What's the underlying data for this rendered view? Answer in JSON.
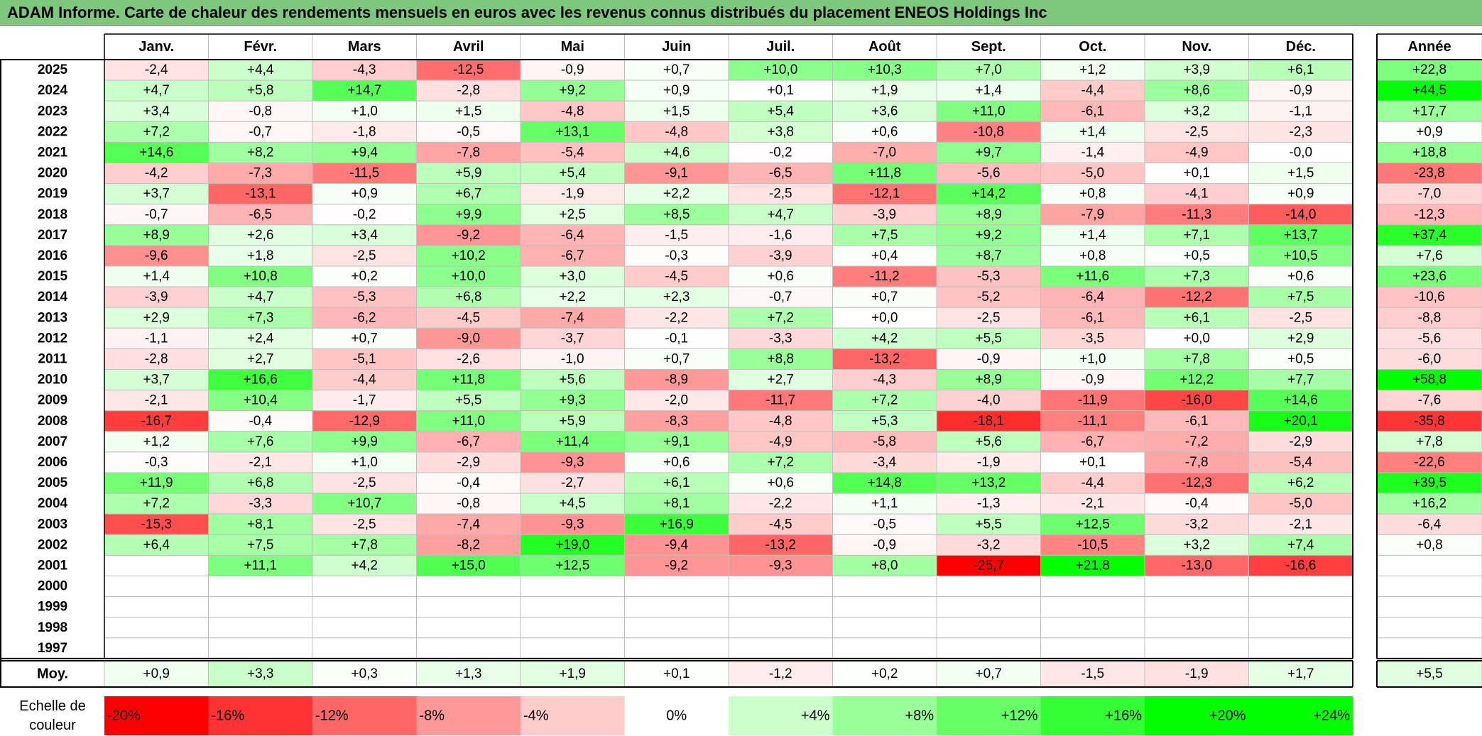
{
  "title": "ADAM Informe. Carte de chaleur des rendements mensuels en euros avec les revenus connus distribués du placement ENEOS Holdings Inc",
  "chart_data": {
    "type": "heatmap",
    "title": "ADAM Informe. Carte de chaleur des rendements mensuels en euros avec les revenus connus distribués du placement ENEOS Holdings Inc",
    "columns": [
      "Janv.",
      "Févr.",
      "Mars",
      "Avril",
      "Mai",
      "Juin",
      "Juil.",
      "Août",
      "Sept.",
      "Oct.",
      "Nov.",
      "Déc."
    ],
    "year_header": "Année",
    "rows": [
      {
        "year": "2025",
        "values": [
          "-2,4",
          "+4,4",
          "-4,3",
          "-12,5",
          "-0,9",
          "+0,7",
          "+10,0",
          "+10,3",
          "+7,0",
          "+1,2",
          "+3,9",
          "+6,1"
        ],
        "annual": "+22,8"
      },
      {
        "year": "2024",
        "values": [
          "+4,7",
          "+5,8",
          "+14,7",
          "-2,8",
          "+9,2",
          "+0,9",
          "+0,1",
          "+1,9",
          "+1,4",
          "-4,4",
          "+8,6",
          "-0,9"
        ],
        "annual": "+44,5"
      },
      {
        "year": "2023",
        "values": [
          "+3,4",
          "-0,8",
          "+1,0",
          "+1,5",
          "-4,8",
          "+1,5",
          "+5,4",
          "+3,6",
          "+11,0",
          "-6,1",
          "+3,2",
          "-1,1"
        ],
        "annual": "+17,7"
      },
      {
        "year": "2022",
        "values": [
          "+7,2",
          "-0,7",
          "-1,8",
          "-0,5",
          "+13,1",
          "-4,8",
          "+3,8",
          "+0,6",
          "-10,8",
          "+1,4",
          "-2,5",
          "-2,3"
        ],
        "annual": "+0,9"
      },
      {
        "year": "2021",
        "values": [
          "+14,6",
          "+8,2",
          "+9,4",
          "-7,8",
          "-5,4",
          "+4,6",
          "-0,2",
          "-7,0",
          "+9,7",
          "-1,4",
          "-4,9",
          "-0,0"
        ],
        "annual": "+18,8"
      },
      {
        "year": "2020",
        "values": [
          "-4,2",
          "-7,3",
          "-11,5",
          "+5,9",
          "+5,4",
          "-9,1",
          "-6,5",
          "+11,8",
          "-5,6",
          "-5,0",
          "+0,1",
          "+1,5"
        ],
        "annual": "-23,8"
      },
      {
        "year": "2019",
        "values": [
          "+3,7",
          "-13,1",
          "+0,9",
          "+6,7",
          "-1,9",
          "+2,2",
          "-2,5",
          "-12,1",
          "+14,2",
          "+0,8",
          "-4,1",
          "+0,9"
        ],
        "annual": "-7,0"
      },
      {
        "year": "2018",
        "values": [
          "-0,7",
          "-6,5",
          "-0,2",
          "+9,9",
          "+2,5",
          "+8,5",
          "+4,7",
          "-3,9",
          "+8,9",
          "-7,9",
          "-11,3",
          "-14,0"
        ],
        "annual": "-12,3"
      },
      {
        "year": "2017",
        "values": [
          "+8,9",
          "+2,6",
          "+3,4",
          "-9,2",
          "-6,4",
          "-1,5",
          "-1,6",
          "+7,5",
          "+9,2",
          "+1,4",
          "+7,1",
          "+13,7"
        ],
        "annual": "+37,4"
      },
      {
        "year": "2016",
        "values": [
          "-9,6",
          "+1,8",
          "-2,5",
          "+10,2",
          "-6,7",
          "-0,3",
          "-3,9",
          "+0,4",
          "+8,7",
          "+0,8",
          "+0,5",
          "+10,5"
        ],
        "annual": "+7,6"
      },
      {
        "year": "2015",
        "values": [
          "+1,4",
          "+10,8",
          "+0,2",
          "+10,0",
          "+3,0",
          "-4,5",
          "+0,6",
          "-11,2",
          "-5,3",
          "+11,6",
          "+7,3",
          "+0,6"
        ],
        "annual": "+23,6"
      },
      {
        "year": "2014",
        "values": [
          "-3,9",
          "+4,7",
          "-5,3",
          "+6,8",
          "+2,2",
          "+2,3",
          "-0,7",
          "+0,7",
          "-5,2",
          "-6,4",
          "-12,2",
          "+7,5"
        ],
        "annual": "-10,6"
      },
      {
        "year": "2013",
        "values": [
          "+2,9",
          "+7,3",
          "-6,2",
          "-4,5",
          "-7,4",
          "-2,2",
          "+7,2",
          "+0,0",
          "-2,5",
          "-6,1",
          "+6,1",
          "-2,5"
        ],
        "annual": "-8,8"
      },
      {
        "year": "2012",
        "values": [
          "-1,1",
          "+2,4",
          "+0,7",
          "-9,0",
          "-3,7",
          "-0,1",
          "-3,3",
          "+4,2",
          "+5,5",
          "-3,5",
          "+0,0",
          "+2,9"
        ],
        "annual": "-5,6"
      },
      {
        "year": "2011",
        "values": [
          "-2,8",
          "+2,7",
          "-5,1",
          "-2,6",
          "-1,0",
          "+0,7",
          "+8,8",
          "-13,2",
          "-0,9",
          "+1,0",
          "+7,8",
          "+0,5"
        ],
        "annual": "-6,0"
      },
      {
        "year": "2010",
        "values": [
          "+3,7",
          "+16,6",
          "-4,4",
          "+11,8",
          "+5,6",
          "-8,9",
          "+2,7",
          "-4,3",
          "+8,9",
          "-0,9",
          "+12,2",
          "+7,7"
        ],
        "annual": "+58,8"
      },
      {
        "year": "2009",
        "values": [
          "-2,1",
          "+10,4",
          "-1,7",
          "+5,5",
          "+9,3",
          "-2,0",
          "-11,7",
          "+7,2",
          "-4,0",
          "-11,9",
          "-16,0",
          "+14,6"
        ],
        "annual": "-7,6"
      },
      {
        "year": "2008",
        "values": [
          "-16,7",
          "-0,4",
          "-12,9",
          "+11,0",
          "+5,9",
          "-8,3",
          "-4,8",
          "+5,3",
          "-18,1",
          "-11,1",
          "-6,1",
          "+20,1"
        ],
        "annual": "-35,8"
      },
      {
        "year": "2007",
        "values": [
          "+1,2",
          "+7,6",
          "+9,9",
          "-6,7",
          "+11,4",
          "+9,1",
          "-4,9",
          "-5,8",
          "+5,6",
          "-6,7",
          "-7,2",
          "-2,9"
        ],
        "annual": "+7,8"
      },
      {
        "year": "2006",
        "values": [
          "-0,3",
          "-2,1",
          "+1,0",
          "-2,9",
          "-9,3",
          "+0,6",
          "+7,2",
          "-3,4",
          "-1,9",
          "+0,1",
          "-7,8",
          "-5,4"
        ],
        "annual": "-22,6"
      },
      {
        "year": "2005",
        "values": [
          "+11,9",
          "+6,8",
          "-2,5",
          "-0,4",
          "-2,7",
          "+6,1",
          "+0,6",
          "+14,8",
          "+13,2",
          "-4,4",
          "-12,3",
          "+6,2"
        ],
        "annual": "+39,5"
      },
      {
        "year": "2004",
        "values": [
          "+7,2",
          "-3,3",
          "+10,7",
          "-0,8",
          "+4,5",
          "+8,1",
          "-2,2",
          "+1,1",
          "-1,3",
          "-2,1",
          "-0,4",
          "-5,0"
        ],
        "annual": "+16,2"
      },
      {
        "year": "2003",
        "values": [
          "-15,3",
          "+8,1",
          "-2,5",
          "-7,4",
          "-9,3",
          "+16,9",
          "-4,5",
          "-0,5",
          "+5,5",
          "+12,5",
          "-3,2",
          "-2,1"
        ],
        "annual": "-6,4"
      },
      {
        "year": "2002",
        "values": [
          "+6,4",
          "+7,5",
          "+7,8",
          "-8,2",
          "+19,0",
          "-9,4",
          "-13,2",
          "-0,9",
          "-3,2",
          "-10,5",
          "+3,2",
          "+7,4"
        ],
        "annual": "+0,8"
      },
      {
        "year": "2001",
        "values": [
          "",
          "+11,1",
          "+4,2",
          "+15,0",
          "+12,5",
          "-9,2",
          "-9,3",
          "+8,0",
          "-25,7",
          "+21,8",
          "-13,0",
          "-16,6"
        ],
        "annual": ""
      },
      {
        "year": "2000",
        "values": [
          "",
          "",
          "",
          "",
          "",
          "",
          "",
          "",
          "",
          "",
          "",
          ""
        ],
        "annual": ""
      },
      {
        "year": "1999",
        "values": [
          "",
          "",
          "",
          "",
          "",
          "",
          "",
          "",
          "",
          "",
          "",
          ""
        ],
        "annual": ""
      },
      {
        "year": "1998",
        "values": [
          "",
          "",
          "",
          "",
          "",
          "",
          "",
          "",
          "",
          "",
          "",
          ""
        ],
        "annual": ""
      },
      {
        "year": "1997",
        "values": [
          "",
          "",
          "",
          "",
          "",
          "",
          "",
          "",
          "",
          "",
          "",
          ""
        ],
        "annual": ""
      }
    ],
    "average": {
      "label": "Moy.",
      "values": [
        "+0,9",
        "+3,3",
        "+0,3",
        "+1,3",
        "+1,9",
        "+0,1",
        "-1,2",
        "+0,2",
        "+0,7",
        "-1,5",
        "-1,9",
        "+1,7"
      ],
      "annual": "+5,5"
    },
    "scale": {
      "label_line1": "Echelle de",
      "label_line2": "couleur",
      "steps": [
        "-20%",
        "-16%",
        "-12%",
        "-8%",
        "-4%",
        "0%",
        "+4%",
        "+8%",
        "+12%",
        "+16%",
        "+20%",
        "+24%"
      ],
      "step_values": [
        -20,
        -16,
        -12,
        -8,
        -4,
        0,
        4,
        8,
        12,
        16,
        20,
        24
      ]
    },
    "colors": {
      "negative_max": "#ff0000",
      "neutral": "#ffffff",
      "positive_max": "#00ff00",
      "title_bg": "#7dc87d",
      "grid": "#bfbfbf",
      "border": "#000000"
    }
  }
}
